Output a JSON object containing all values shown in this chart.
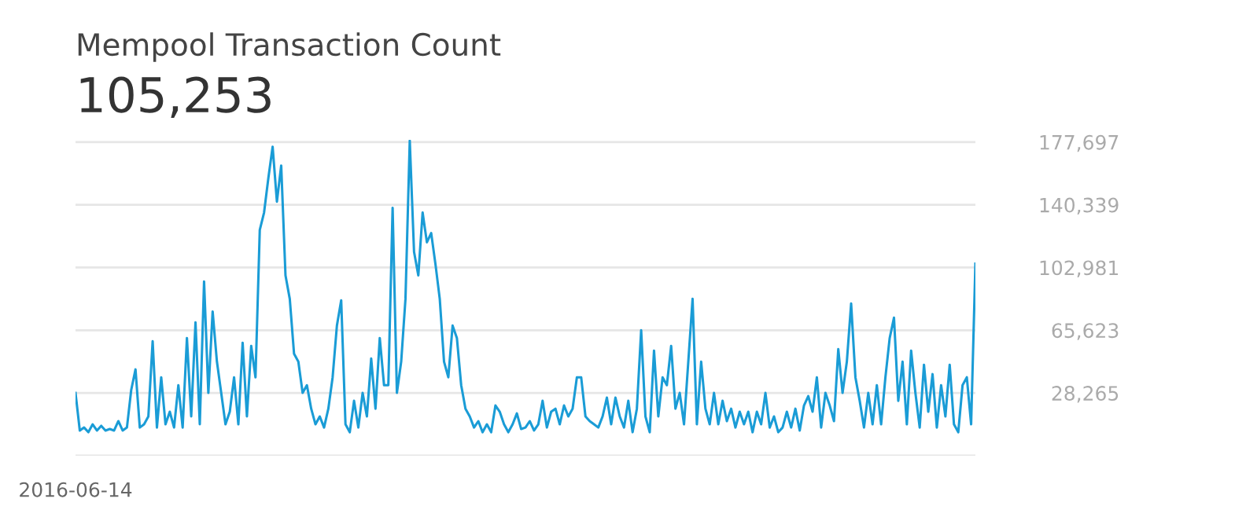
{
  "chart_data": {
    "type": "line",
    "title": "Mempool Transaction Count",
    "subtitle": "105,253",
    "categories": [
      "2016-06-14",
      null,
      null,
      null,
      null,
      null,
      null,
      null,
      null,
      null,
      null,
      null,
      null,
      null,
      null,
      null,
      null,
      null,
      null,
      null,
      null,
      null,
      null,
      null,
      null,
      null,
      null,
      null,
      null,
      null,
      null,
      null,
      null,
      null,
      null,
      null,
      null,
      null,
      null,
      null,
      null,
      null,
      null,
      null,
      null,
      null,
      null,
      null,
      null,
      null,
      null,
      null,
      null,
      null,
      null,
      null,
      null,
      null,
      null,
      null,
      null,
      null,
      null,
      null,
      null,
      null,
      null,
      null,
      null,
      null,
      null,
      null,
      null,
      null,
      null,
      null,
      null,
      null,
      null,
      null,
      null,
      null,
      null,
      null,
      null,
      null,
      null,
      null,
      null,
      null,
      null,
      null,
      null,
      null,
      null,
      null,
      null,
      null,
      null,
      null,
      null,
      null,
      null,
      null,
      null,
      null,
      null,
      null,
      null,
      null,
      null,
      null,
      null,
      null,
      null,
      null,
      null,
      null,
      null,
      null,
      null,
      null,
      null,
      null,
      null,
      null,
      null,
      null,
      null,
      null,
      null,
      null,
      null,
      null,
      null,
      null,
      null,
      null,
      null,
      null,
      null,
      null,
      null,
      null,
      null,
      null,
      null,
      null,
      null,
      null,
      null,
      null,
      null,
      null,
      null,
      null,
      null,
      null,
      null,
      null,
      null,
      null,
      null,
      null,
      null,
      null,
      null,
      null,
      null,
      null,
      null,
      null,
      null,
      null,
      null,
      null,
      null,
      null,
      null,
      null,
      null,
      null,
      null,
      null,
      null,
      null,
      null,
      null,
      null,
      null,
      null,
      null,
      null,
      null,
      null,
      null,
      null,
      null,
      null,
      null,
      null,
      null,
      null,
      null,
      null,
      null,
      null,
      null,
      null,
      null,
      null
    ],
    "series": [
      {
        "color": "#1a9cd6",
        "values": [
          28300,
          5900,
          7700,
          4900,
          9600,
          5900,
          8700,
          5900,
          6800,
          5900,
          11500,
          5900,
          7700,
          30100,
          42300,
          7700,
          9600,
          14300,
          59100,
          7700,
          37600,
          9600,
          17100,
          7700,
          32900,
          7700,
          61000,
          14300,
          70300,
          9600,
          94600,
          28300,
          76800,
          46900,
          28300,
          9600,
          17100,
          37600,
          9600,
          58200,
          14300,
          56300,
          37600,
          125400,
          135700,
          156200,
          174900,
          142200,
          163700,
          98300,
          84300,
          51600,
          46900,
          28300,
          32900,
          18900,
          9600,
          14300,
          7700,
          18900,
          37600,
          68400,
          83400,
          9600,
          4900,
          23600,
          7700,
          28300,
          14300,
          48800,
          18900,
          61000,
          32900,
          32900,
          138500,
          28300,
          46900,
          84300,
          178500,
          112300,
          98300,
          135700,
          118000,
          123500,
          104900,
          84300,
          46900,
          37600,
          68400,
          61000,
          32900,
          18900,
          14300,
          7700,
          11500,
          4900,
          9600,
          4900,
          20800,
          17100,
          9600,
          4900,
          9600,
          16100,
          6800,
          7700,
          11500,
          5900,
          9600,
          23600,
          7700,
          17100,
          18900,
          9600,
          20800,
          14300,
          18900,
          37600,
          37600,
          14300,
          11500,
          9600,
          7700,
          14300,
          25500,
          9600,
          25500,
          14300,
          7700,
          23600,
          4900,
          18900,
          65600,
          14300,
          4900,
          53500,
          14300,
          37600,
          32900,
          56300,
          18900,
          28300,
          9600,
          46900,
          84300,
          9600,
          46900,
          18900,
          9600,
          28300,
          9600,
          23600,
          11500,
          18900,
          7700,
          17100,
          9600,
          17100,
          4900,
          17100,
          9600,
          28300,
          7700,
          14300,
          4900,
          7700,
          17100,
          7700,
          18900,
          5900,
          20800,
          26400,
          17100,
          37600,
          7700,
          28300,
          20800,
          11500,
          54400,
          28300,
          46900,
          81500,
          37600,
          23600,
          7700,
          28300,
          9600,
          32900,
          9600,
          37600,
          61000,
          73100,
          23600,
          46900,
          9600,
          53500,
          28300,
          7700,
          45100,
          17100,
          39500,
          7700,
          32900,
          14300,
          45100,
          9600,
          4900,
          32900,
          37600,
          9600,
          105253
        ]
      }
    ],
    "ylim": [
      -9093,
      179000
    ],
    "yticks": [
      {
        "value": -9093,
        "label": null
      },
      {
        "value": 28265,
        "label": "28,265"
      },
      {
        "value": 65623,
        "label": "65,623"
      },
      {
        "value": 102981,
        "label": "102,981"
      },
      {
        "value": 140339,
        "label": "140,339"
      },
      {
        "value": 177697,
        "label": "177,697"
      }
    ],
    "grid": "y"
  }
}
